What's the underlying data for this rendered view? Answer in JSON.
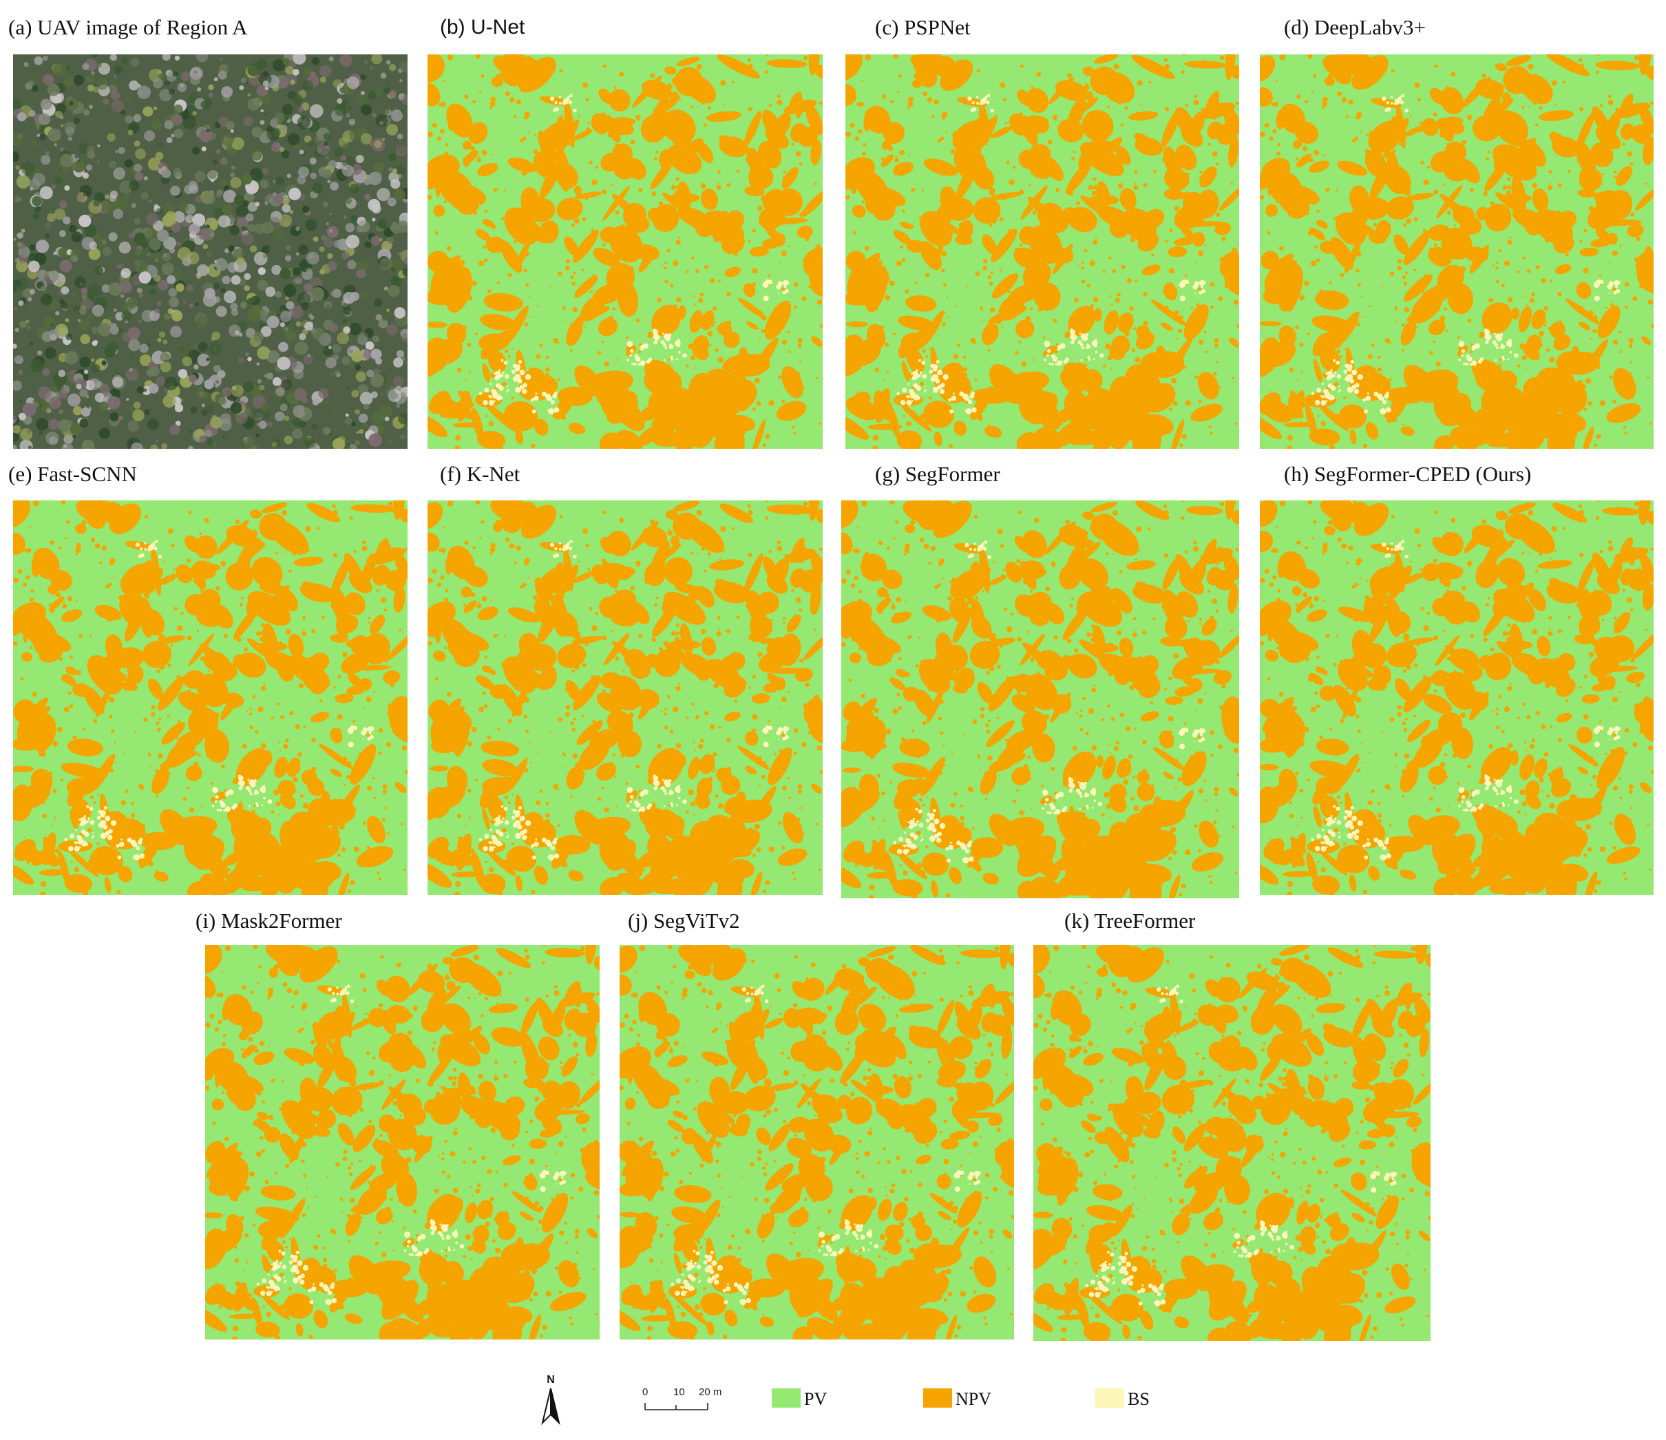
{
  "panels": [
    {
      "id": "a",
      "label": "(a) UAV image of Region A",
      "kind": "photo"
    },
    {
      "id": "b",
      "label": "(b) U-Net",
      "kind": "classmap"
    },
    {
      "id": "c",
      "label": "(c) PSPNet",
      "kind": "classmap"
    },
    {
      "id": "d",
      "label": "(d) DeepLabv3+",
      "kind": "classmap"
    },
    {
      "id": "e",
      "label": "(e) Fast-SCNN",
      "kind": "classmap"
    },
    {
      "id": "f",
      "label": "(f) K-Net",
      "kind": "classmap"
    },
    {
      "id": "g",
      "label": "(g) SegFormer",
      "kind": "classmap"
    },
    {
      "id": "h",
      "label": "(h) SegFormer-CPED (Ours)",
      "kind": "classmap"
    },
    {
      "id": "i",
      "label": "(i) Mask2Former",
      "kind": "classmap"
    },
    {
      "id": "j",
      "label": "(j) SegViTv2",
      "kind": "classmap"
    },
    {
      "id": "k",
      "label": "(k) TreeFormer",
      "kind": "classmap"
    }
  ],
  "legend": {
    "north_label": "N",
    "scale_ticks": [
      "0",
      "10",
      "20 m"
    ],
    "classes": [
      {
        "label": "PV",
        "color": "#95e872"
      },
      {
        "label": "NPV",
        "color": "#f5a400"
      },
      {
        "label": "BS",
        "color": "#fdf6b8"
      }
    ]
  },
  "colors": {
    "pv": "#95e872",
    "npv": "#f5a400",
    "bs": "#fdf6b8",
    "photo_base": "#4f6046"
  },
  "icons": {
    "north_arrow": "north-arrow-icon"
  }
}
